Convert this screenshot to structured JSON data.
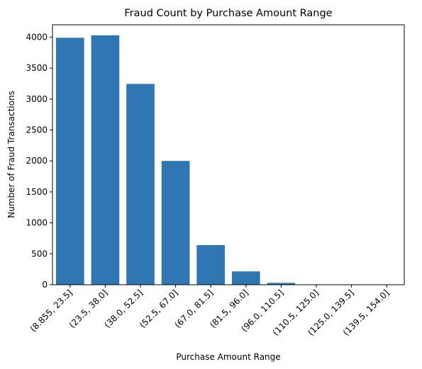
{
  "chart_data": {
    "type": "bar",
    "title": "Fraud Count by Purchase Amount Range",
    "xlabel": "Purchase Amount Range",
    "ylabel": "Number of Fraud Transactions",
    "categories": [
      "(8.855, 23.5]",
      "(23.5, 38.0]",
      "(38.0, 52.5]",
      "(52.5, 67.0]",
      "(67.0, 81.5]",
      "(81.5, 96.0]",
      "(96.0, 110.5]",
      "(110.5, 125.0]",
      "(125.0, 139.5]",
      "(139.5, 154.0]"
    ],
    "values": [
      3990,
      4030,
      3245,
      2000,
      640,
      215,
      30,
      3,
      1,
      1
    ],
    "ylim": [
      0,
      4200
    ],
    "yticks": [
      0,
      500,
      1000,
      1500,
      2000,
      2500,
      3000,
      3500,
      4000
    ],
    "color": "#2e77b2",
    "grid": false,
    "xtick_rotation": 45
  }
}
